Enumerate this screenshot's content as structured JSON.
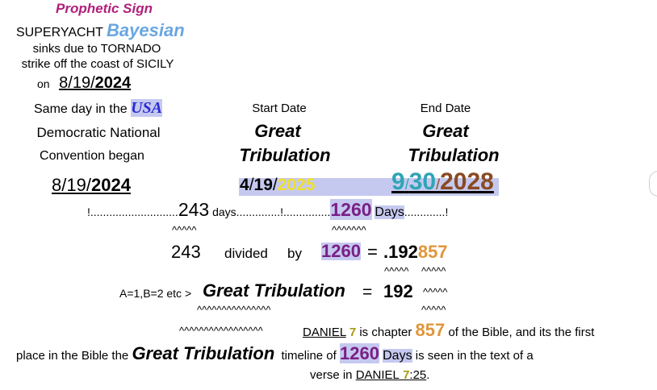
{
  "header": {
    "prophetic_sign": "Prophetic Sign",
    "superyacht": "SUPERYACHT",
    "bayesian": "Bayesian",
    "line_sinks": "sinks due to TORNADO",
    "line_strike": "strike off the coast of SICILY",
    "on": "on",
    "date_month": "8",
    "date_day": "19",
    "date_year": "2024",
    "sep": "/"
  },
  "left": {
    "same_day": "Same day in the",
    "usa": "USA",
    "democratic": "Democratic National",
    "convention": "Convention began",
    "date_month": "8",
    "date_day": "19",
    "date_year": "2024"
  },
  "start": {
    "label": "Start Date",
    "great": "Great",
    "tribulation": "Tribulation",
    "date_month": "4",
    "date_day": "19",
    "date_year": "2025"
  },
  "end": {
    "label": "End Date",
    "great": "Great",
    "tribulation": "Tribulation",
    "date_month": "9",
    "date_day": "30",
    "date_year": "2028"
  },
  "days_line": {
    "start_mark": "!............................",
    "n243": "243",
    "days1": "days",
    "dots1": "..............!...............",
    "n1260": "1260",
    "days2": "Days",
    "dots2": ".............!",
    "carets1": "^^^^^",
    "carets2": "^^^^^^^"
  },
  "division": {
    "n243": "243",
    "divided": "divided",
    "by": "by",
    "n1260": "1260",
    "equals": "=",
    "result_a": ".192",
    "result_b": "857",
    "carets_a": "^^^^^",
    "carets_b": "^^^^^"
  },
  "gematria": {
    "prefix": "A=1,B=2 etc >",
    "phrase": "Great Tribulation",
    "equals": "=",
    "value": "192",
    "carets_right": "^^^^^",
    "carets_under": "^^^^^^^^^^^^^^^",
    "carets_right2": "^^^^^"
  },
  "daniel": {
    "carets_left": "^^^^^^^^^^^^^^^^^",
    "daniel": "DANIEL",
    "seven": "7",
    "is_chapter": "is chapter",
    "n857": "857",
    "of_bible": "of the Bible, and its the first"
  },
  "closing": {
    "place": "place in the Bible the",
    "phrase": "Great Tribulation",
    "timeline": "timeline of",
    "n1260": "1260",
    "days": "Days",
    "seen": "is seen in the text of a",
    "verse_in": "verse in",
    "daniel": "DANIEL",
    "seven": "7",
    "ref": ":25",
    "period": "."
  }
}
